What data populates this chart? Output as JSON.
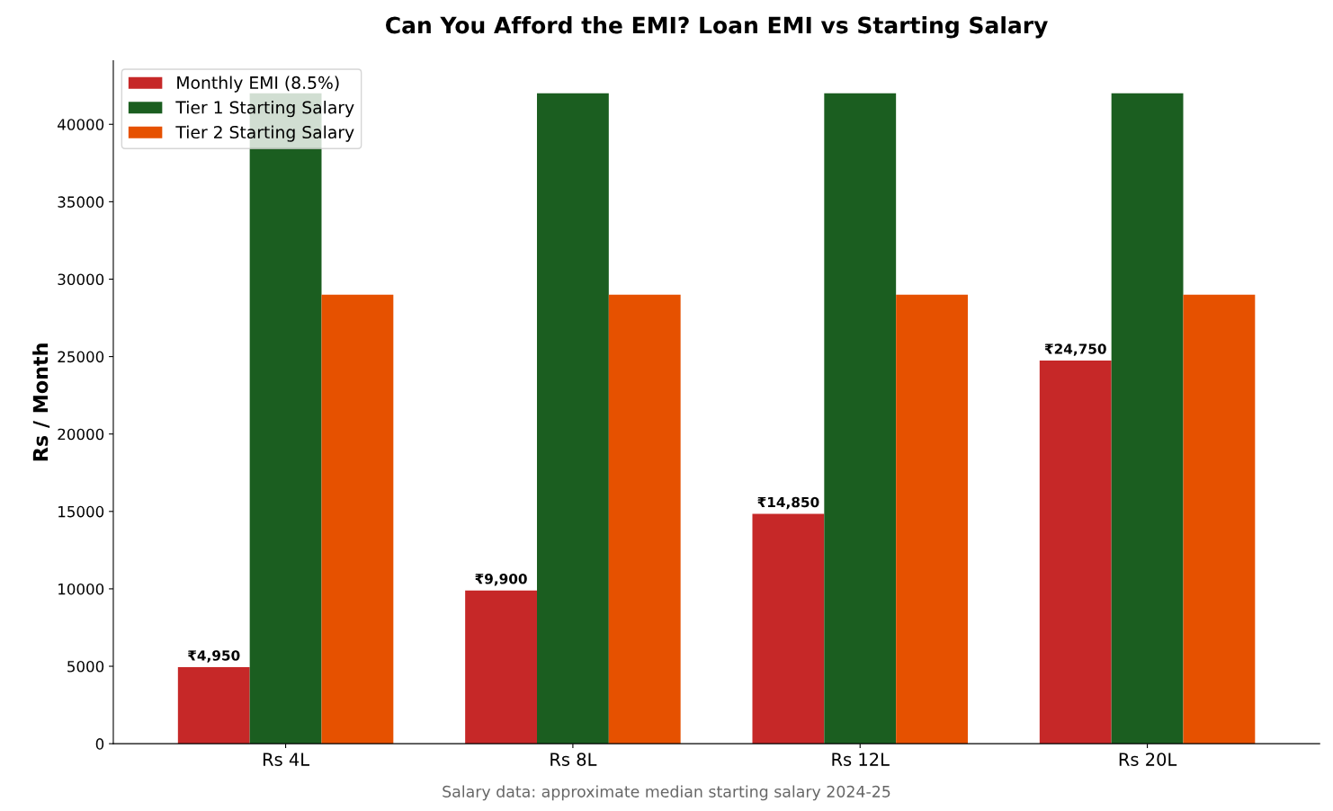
{
  "chart_data": {
    "type": "bar",
    "title": "Can You Afford the EMI? Loan EMI vs Starting Salary",
    "ylabel": "Rs / Month",
    "categories": [
      "Rs 4L",
      "Rs 8L",
      "Rs 12L",
      "Rs 20L"
    ],
    "series": [
      {
        "name": "Monthly EMI (8.5%)",
        "color": "#c62828",
        "values": [
          4950,
          9900,
          14850,
          24750
        ],
        "value_labels": [
          "₹4,950",
          "₹9,900",
          "₹14,850",
          "₹24,750"
        ]
      },
      {
        "name": "Tier 1 Starting Salary",
        "color": "#1b5e20",
        "values": [
          42000,
          42000,
          42000,
          42000
        ]
      },
      {
        "name": "Tier 2 Starting Salary",
        "color": "#e65100",
        "values": [
          29000,
          29000,
          29000,
          29000
        ]
      }
    ],
    "ylim": [
      0,
      44100
    ],
    "yticks": [
      0,
      5000,
      10000,
      15000,
      20000,
      25000,
      30000,
      35000,
      40000
    ],
    "grid": false,
    "legend": "top left",
    "annotations": [
      "Salary data: approximate median starting salary 2024-25"
    ]
  }
}
